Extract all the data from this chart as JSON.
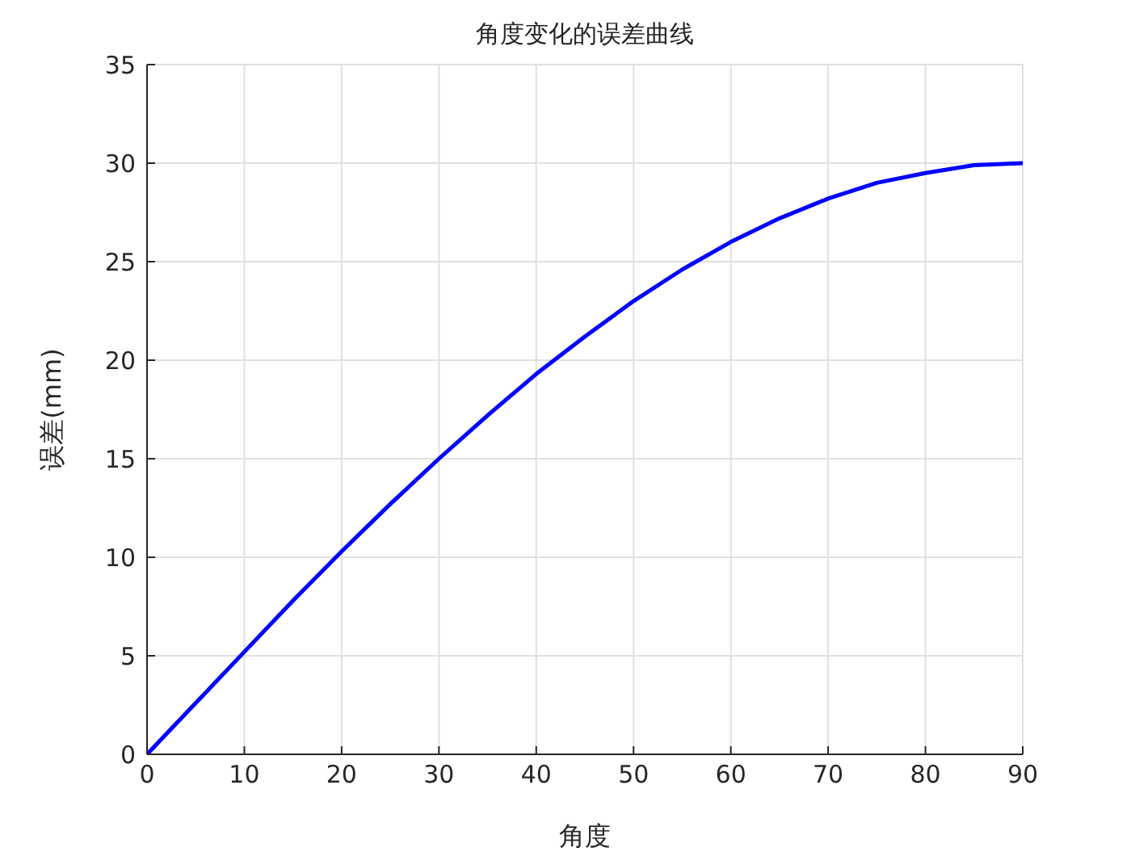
{
  "chart_data": {
    "type": "line",
    "title": "角度变化的误差曲线",
    "xlabel": "角度",
    "ylabel": "误差(mm)",
    "x": [
      0,
      5,
      10,
      15,
      20,
      25,
      30,
      35,
      40,
      45,
      50,
      55,
      60,
      65,
      70,
      75,
      80,
      85,
      90
    ],
    "series": [
      {
        "color": "#0000ff",
        "values": [
          0,
          2.6,
          5.2,
          7.8,
          10.3,
          12.7,
          15,
          17.2,
          19.3,
          21.2,
          23,
          24.6,
          26,
          27.2,
          28.2,
          29,
          29.5,
          29.9,
          30
        ]
      }
    ],
    "xlim": [
      0,
      90
    ],
    "xticks": [
      0,
      10,
      20,
      30,
      40,
      50,
      60,
      70,
      80,
      90
    ],
    "ylim": [
      0,
      35
    ],
    "yticks": [
      0,
      5,
      10,
      15,
      20,
      25,
      30,
      35
    ],
    "grid": true,
    "marker": "none",
    "line_style": "solid"
  }
}
